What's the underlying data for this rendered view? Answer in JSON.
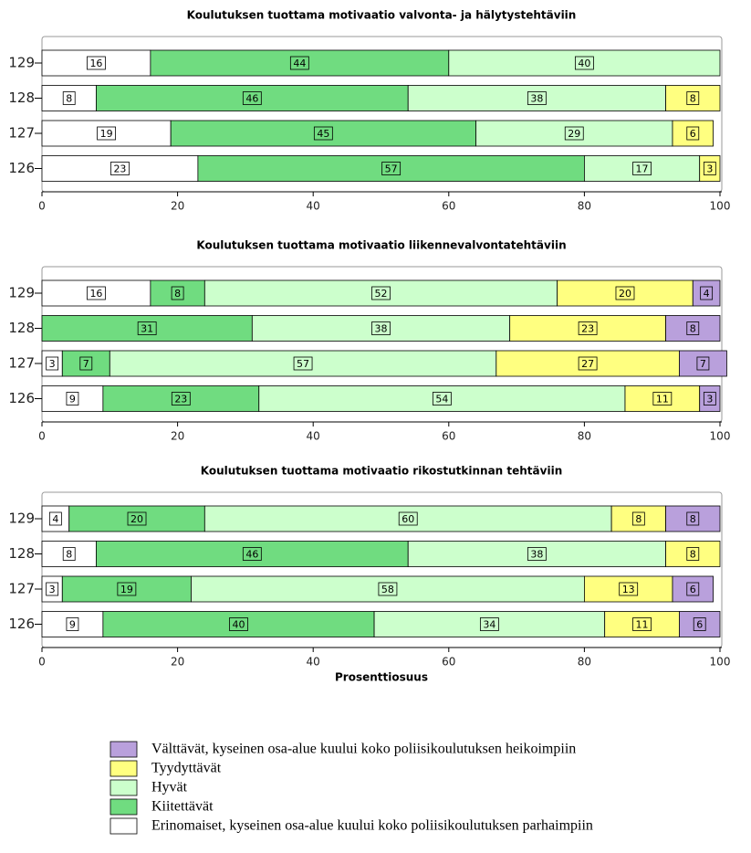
{
  "chart_data": [
    {
      "type": "stacked-bar-horizontal",
      "title": "Koulutuksen tuottama motivaatio valvonta- ja hälytystehtäviin",
      "categories": [
        "129",
        "128",
        "127",
        "126"
      ],
      "series": [
        {
          "values": [
            16,
            8,
            19,
            23
          ]
        },
        {
          "values": [
            44,
            46,
            45,
            57
          ]
        },
        {
          "values": [
            40,
            38,
            29,
            17
          ]
        },
        {
          "values": [
            null,
            8,
            6,
            3
          ]
        },
        {
          "values": [
            null,
            null,
            null,
            null
          ]
        }
      ],
      "xlim": [
        0,
        100
      ],
      "xticks": [
        0,
        20,
        40,
        60,
        80,
        100
      ]
    },
    {
      "type": "stacked-bar-horizontal",
      "title": "Koulutuksen tuottama motivaatio liikennevalvontatehtäviin",
      "categories": [
        "129",
        "128",
        "127",
        "126"
      ],
      "series": [
        {
          "values": [
            16,
            null,
            3,
            9
          ]
        },
        {
          "values": [
            8,
            31,
            7,
            23
          ]
        },
        {
          "values": [
            52,
            38,
            57,
            54
          ]
        },
        {
          "values": [
            20,
            23,
            27,
            11
          ]
        },
        {
          "values": [
            4,
            8,
            7,
            3
          ]
        }
      ],
      "xlim": [
        0,
        100
      ],
      "xticks": [
        0,
        20,
        40,
        60,
        80,
        100
      ]
    },
    {
      "type": "stacked-bar-horizontal",
      "title": "Koulutuksen tuottama motivaatio rikostutkinnan tehtäviin",
      "categories": [
        "129",
        "128",
        "127",
        "126"
      ],
      "series": [
        {
          "values": [
            4,
            8,
            3,
            9
          ]
        },
        {
          "values": [
            20,
            46,
            19,
            40
          ]
        },
        {
          "values": [
            60,
            38,
            58,
            34
          ]
        },
        {
          "values": [
            8,
            8,
            13,
            11
          ]
        },
        {
          "values": [
            8,
            null,
            6,
            6
          ]
        }
      ],
      "xlim": [
        0,
        100
      ],
      "xticks": [
        0,
        20,
        40,
        60,
        80,
        100
      ],
      "xlabel": "Prosenttiosuus"
    }
  ],
  "legend": {
    "items": [
      {
        "name": "Erinomaiset, kyseinen osa-alue kuului koko poliisikoulutuksen parhaimpiin",
        "color": "#ffffff"
      },
      {
        "name": "Kiitettävät",
        "color": "#70dc80"
      },
      {
        "name": "Hyvät",
        "color": "#ccffcc"
      },
      {
        "name": "Tyydyttävät",
        "color": "#ffff80"
      },
      {
        "name": "Välttävät, kyseinen osa-alue kuului koko poliisikoulutuksen heikoimpiin",
        "color": "#b9a0dc"
      }
    ]
  }
}
